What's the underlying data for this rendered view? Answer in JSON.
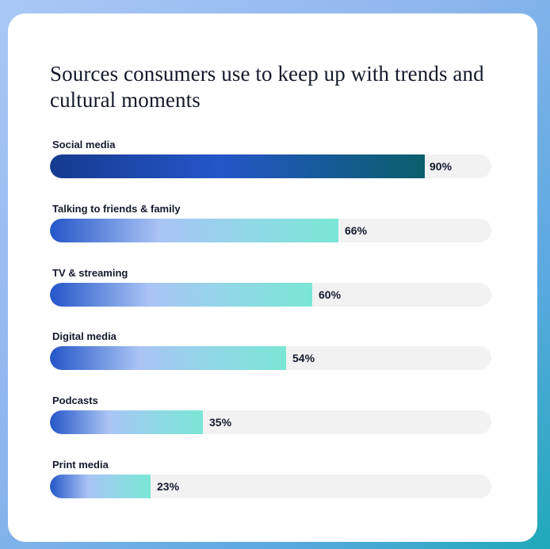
{
  "chart_data": {
    "type": "bar",
    "orientation": "horizontal",
    "title": "Sources consumers use to keep up with trends and cultural moments",
    "categories": [
      "Social media",
      "Talking to friends & family",
      "TV & streaming",
      "Digital media",
      "Podcasts",
      "Print media"
    ],
    "values": [
      90,
      66,
      60,
      54,
      35,
      23
    ],
    "value_labels": [
      "90%",
      "66%",
      "60%",
      "54%",
      "35%",
      "23%"
    ],
    "xlim": [
      0,
      100
    ],
    "unit": "%",
    "grid": false,
    "legend": "none",
    "colors": {
      "highlight_bar": "#1f4fb8",
      "bar_start": "#2456c8",
      "bar_end": "#7ae6d4",
      "track": "#f2f2f3",
      "text": "#141a2b"
    }
  }
}
